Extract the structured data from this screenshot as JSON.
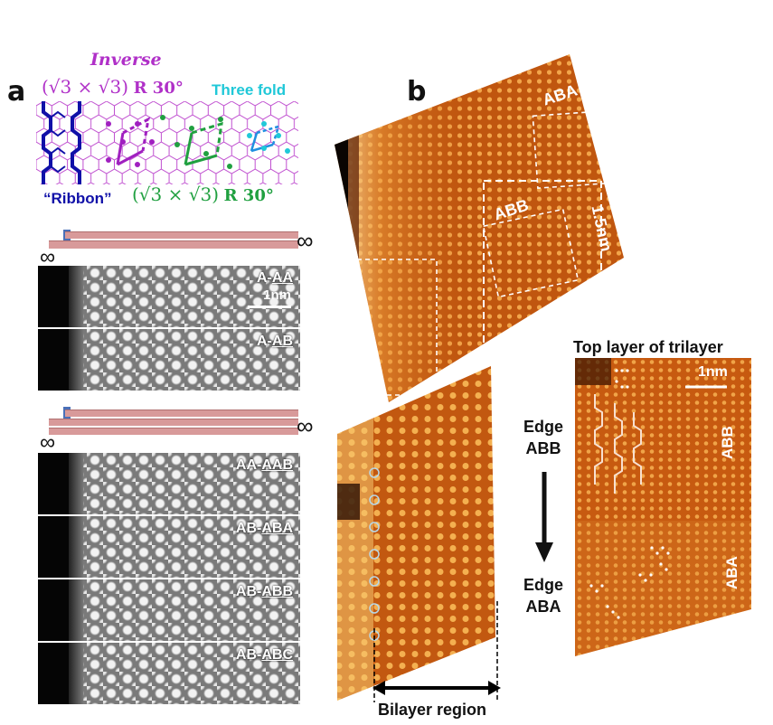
{
  "panel_a": {
    "letter": "a",
    "inverse_label": "Inverse",
    "top_formula_prefix": "(√3 × √3)",
    "top_formula_suffix": "R 30°",
    "threefold_label": "Three fold",
    "ribbon_label": "“Ribbon”",
    "bottom_formula_prefix": "(√3 × √3)",
    "bottom_formula_suffix": "R 30°",
    "infinity": "∞",
    "scale_label": "1nm",
    "sims_group1": [
      {
        "prefix": "A-",
        "underlined": "AA"
      },
      {
        "prefix": "A-",
        "underlined": "AB"
      }
    ],
    "sims_group2": [
      {
        "prefix": "AA-",
        "underlined": "AAB"
      },
      {
        "prefix": "AB-",
        "underlined": "ABA"
      },
      {
        "prefix": "AB-",
        "underlined": "ABB"
      },
      {
        "prefix": "AB-",
        "underlined": "ABC"
      }
    ],
    "colors": {
      "purple": "#b030c8",
      "cyan": "#20c8d8",
      "green": "#20a040",
      "blue": "#1010a8",
      "bar": "#d89a9a"
    }
  },
  "panel_b": {
    "letter": "b",
    "main_labels": {
      "aba": "ABA",
      "abb": "ABB",
      "scale": "1.5nm"
    },
    "edge_top_1": "Edge",
    "edge_top_2": "ABB",
    "edge_bottom_1": "Edge",
    "edge_bottom_2": "ABA",
    "arrow_glyph": "↓",
    "bilayer_label": "Bilayer region",
    "right_title": "Top layer of trilayer",
    "right_scale": "1nm",
    "right_abb": "ABB",
    "right_aba": "ABA"
  }
}
